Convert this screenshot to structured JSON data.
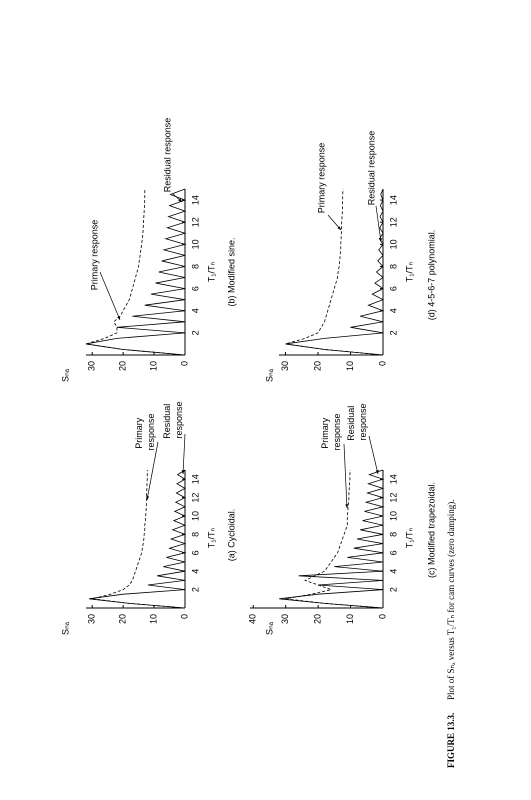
{
  "chart_data": [
    {
      "type": "line",
      "title": "(a) Cycloidal.",
      "x_label": "T₁/Tₙ",
      "y_label": "Sₙₐ",
      "x": [
        0,
        0.5,
        1,
        1.5,
        2,
        2.5,
        3,
        3.5,
        4,
        4.5,
        5,
        5.5,
        6,
        6.5,
        7,
        7.5,
        8,
        8.5,
        9,
        9.5,
        10,
        10.5,
        11,
        11.5,
        12,
        12.5,
        13,
        13.5,
        14,
        14.5,
        15
      ],
      "xlim": [
        0,
        15
      ],
      "xticks": [
        2,
        4,
        6,
        8,
        10,
        12,
        14
      ],
      "ylim": [
        0,
        32
      ],
      "yticks": [
        0,
        10,
        20,
        30
      ],
      "series": [
        {
          "name": "Primary response",
          "color": "#000000",
          "line_style": "dashed",
          "values": [
            0,
            18,
            30,
            24,
            20,
            18,
            17,
            16.5,
            16,
            15.5,
            15,
            14.5,
            14,
            13.8,
            13.5,
            13.3,
            13.2,
            13,
            13,
            12.8,
            12.7,
            12.6,
            12.5,
            12.5,
            12.4,
            12.4,
            12.3,
            12.3,
            12.2,
            12.2,
            12.2
          ]
        },
        {
          "name": "Residual response",
          "color": "#000000",
          "line_style": "solid",
          "values": [
            0,
            18,
            31,
            20,
            0,
            12,
            0,
            9,
            0,
            7,
            0,
            6,
            0,
            5,
            0,
            4.5,
            0,
            4,
            0,
            3.6,
            0,
            3.3,
            0,
            3,
            0,
            2.8,
            0,
            2.6,
            0,
            2.4,
            0
          ]
        }
      ]
    },
    {
      "type": "line",
      "title": "(b) Modified sine.",
      "x_label": "T₁/Tₙ",
      "y_label": "Sₙₐ",
      "x": [
        0,
        0.5,
        1,
        1.5,
        2,
        2.5,
        3,
        3.5,
        4,
        4.5,
        5,
        5.5,
        6,
        6.5,
        7,
        7.5,
        8,
        8.5,
        9,
        9.5,
        10,
        10.5,
        11,
        11.5,
        12,
        12.5,
        13,
        13.5,
        14,
        14.5,
        15
      ],
      "xlim": [
        0,
        15
      ],
      "xticks": [
        2,
        4,
        6,
        8,
        10,
        12,
        14
      ],
      "ylim": [
        0,
        32
      ],
      "yticks": [
        0,
        10,
        20,
        30
      ],
      "series": [
        {
          "name": "Primary response",
          "color": "#000000",
          "line_style": "dashed",
          "values": [
            0,
            20,
            32,
            26,
            22,
            22,
            23,
            21,
            20,
            19,
            18,
            17.5,
            17,
            16.5,
            16,
            15.5,
            15,
            14.8,
            14.5,
            14.3,
            14,
            13.8,
            13.6,
            13.5,
            13.4,
            13.3,
            13.2,
            13.1,
            13,
            13,
            13
          ]
        },
        {
          "name": "Residual response",
          "color": "#000000",
          "line_style": "solid",
          "values": [
            0,
            20,
            32,
            22,
            0,
            22,
            0,
            17,
            0,
            13,
            0,
            11,
            0,
            9.5,
            0,
            8.5,
            0,
            7.5,
            0,
            6.8,
            0,
            6.2,
            0,
            5.7,
            0,
            5.3,
            0,
            5,
            0,
            4.7,
            0
          ]
        }
      ]
    },
    {
      "type": "line",
      "title": "(c) Modified trapezoidal.",
      "x_label": "T₁/Tₙ",
      "y_label": "Sₙₐ",
      "x": [
        0,
        0.5,
        1,
        1.5,
        2,
        2.5,
        3,
        3.5,
        4,
        4.5,
        5,
        5.5,
        6,
        6.5,
        7,
        7.5,
        8,
        8.5,
        9,
        9.5,
        10,
        10.5,
        11,
        11.5,
        12,
        12.5,
        13,
        13.5,
        14,
        14.5,
        15
      ],
      "xlim": [
        0,
        15
      ],
      "xticks": [
        2,
        4,
        6,
        8,
        10,
        12,
        14
      ],
      "ylim": [
        0,
        41
      ],
      "yticks": [
        0,
        10,
        20,
        30,
        40
      ],
      "series": [
        {
          "name": "Primary response",
          "color": "#000000",
          "line_style": "dashed",
          "values": [
            0,
            18,
            30,
            22,
            16,
            20,
            24,
            21,
            18,
            17,
            16,
            15,
            14,
            13.5,
            13,
            12.5,
            12,
            11.5,
            11,
            11,
            11,
            10.8,
            10.8,
            10.6,
            10.5,
            10.5,
            10.4,
            10.3,
            10.2,
            10.2,
            10.1
          ]
        },
        {
          "name": "Residual response",
          "color": "#000000",
          "line_style": "solid",
          "values": [
            0,
            18,
            32,
            20,
            0,
            20,
            0,
            26,
            0,
            15,
            0,
            11,
            0,
            9,
            0,
            8,
            0,
            7,
            0,
            6.3,
            0,
            5.7,
            0,
            5.2,
            0,
            4.8,
            0,
            4.5,
            0,
            4.2,
            0
          ]
        }
      ]
    },
    {
      "type": "line",
      "title": "(d) 4-5-6-7 polynomial.",
      "x_label": "T₁/Tₙ",
      "y_label": "Sₙₐ",
      "x": [
        0,
        0.5,
        1,
        1.5,
        2,
        2.5,
        3,
        3.5,
        4,
        4.5,
        5,
        5.5,
        6,
        6.5,
        7,
        7.5,
        8,
        8.5,
        9,
        9.5,
        10,
        10.5,
        11,
        11.5,
        12,
        12.5,
        13,
        13.5,
        14,
        14.5,
        15
      ],
      "xlim": [
        0,
        15
      ],
      "xticks": [
        2,
        4,
        6,
        8,
        10,
        12,
        14
      ],
      "ylim": [
        0,
        32
      ],
      "yticks": [
        0,
        10,
        20,
        30
      ],
      "series": [
        {
          "name": "Primary response",
          "color": "#000000",
          "line_style": "dashed",
          "values": [
            0,
            18,
            30,
            24,
            20,
            19,
            18,
            17.5,
            17,
            16.5,
            16,
            15.5,
            15,
            14.5,
            14,
            13.8,
            13.5,
            13.3,
            13.2,
            13,
            13,
            12.9,
            12.8,
            12.8,
            12.7,
            12.6,
            12.5,
            12.5,
            12.4,
            12.4,
            12.3
          ]
        },
        {
          "name": "Residual response",
          "color": "#000000",
          "line_style": "solid",
          "values": [
            0,
            18,
            30,
            18,
            0,
            10,
            0,
            7,
            0,
            4.5,
            0,
            3.3,
            0,
            2.5,
            0,
            2,
            0,
            1.6,
            0,
            1.3,
            0,
            1.1,
            0,
            1,
            0,
            0.9,
            0,
            0.8,
            0,
            0.7,
            0
          ]
        }
      ]
    }
  ],
  "figure_caption": {
    "label": "FIGURE 13.3.",
    "text": "Plot of Sₙₐ versus T₁/Tₙ for cam curves (zero damping)."
  }
}
